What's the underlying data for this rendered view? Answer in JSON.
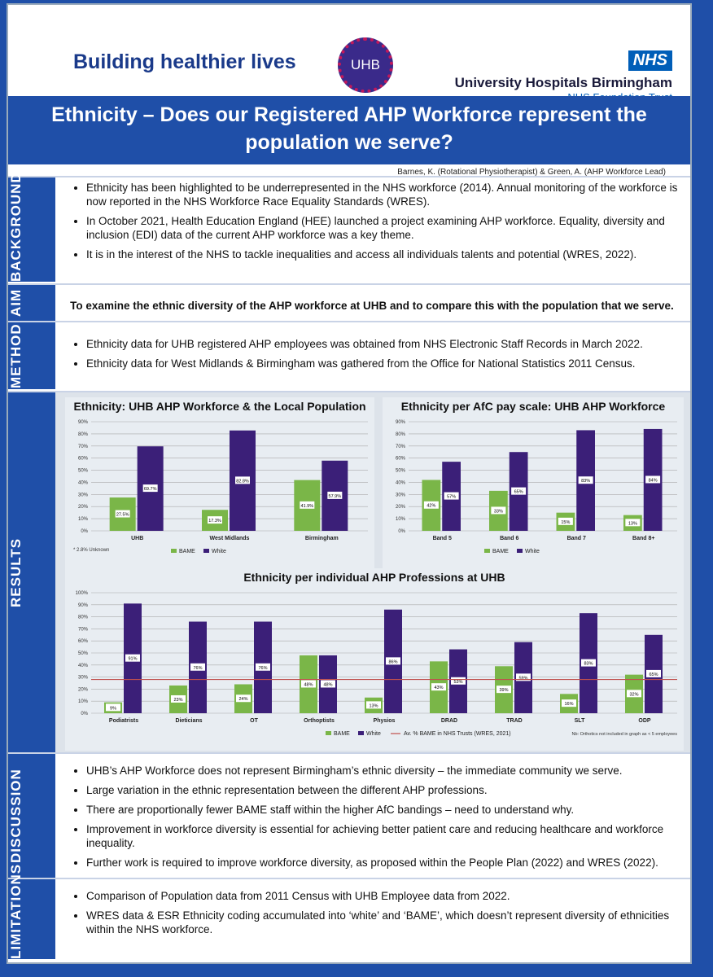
{
  "header": {
    "tagline": "Building healthier lives",
    "logo": "UHB",
    "nhs": "NHS",
    "org": "University Hospitals Birmingham",
    "trust": "NHS Foundation Trust"
  },
  "title": "Ethnicity – Does our Registered AHP Workforce represent the population we serve?",
  "authors": "Barnes, K. (Rotational Physiotherapist) & Green, A. (AHP Workforce Lead)",
  "sections": [
    {
      "label": "BACKGROUND",
      "items": [
        "Ethnicity has been highlighted to be underrepresented in the NHS workforce (2014). Annual monitoring of the workforce is now reported in the NHS Workforce Race Equality Standards (WRES).",
        "In October 2021, Health Education England (HEE) launched a project examining AHP workforce. Equality, diversity and inclusion (EDI) data of the current AHP workforce was a key theme.",
        "It is in the interest of the NHS to tackle inequalities and access all individuals talents and potential (WRES, 2022)."
      ]
    },
    {
      "label": "AIM",
      "items": [
        "To examine the ethnic diversity of the AHP workforce at UHB and to compare this with the population that we serve."
      ]
    },
    {
      "label": "METHOD",
      "items": [
        "Ethnicity data for UHB registered AHP employees was obtained from NHS Electronic Staff Records in March 2022.",
        "Ethnicity data for West Midlands & Birmingham was gathered from the Office for National Statistics 2011 Census."
      ]
    },
    {
      "label": "RESULTS",
      "items": []
    },
    {
      "label": "DISCUSSION",
      "items": [
        "UHB’s AHP Workforce does not represent Birmingham’s ethnic diversity – the immediate community we serve.",
        "Large variation in the ethnic representation between the different AHP professions.",
        "There are proportionally fewer BAME staff within the higher AfC bandings – need to understand why.",
        "Improvement in workforce diversity is essential for achieving better patient care and reducing healthcare and workforce inequality.",
        "Further work is required to improve workforce diversity, as proposed within the People Plan (2022) and WRES (2022)."
      ]
    },
    {
      "label": "LIMITATIONS",
      "items": [
        "Comparison of Population data from 2011 Census with UHB Employee data from 2022.",
        "WRES data & ESR Ethnicity coding accumulated into ‘white’ and ‘BAME’, which doesn’t represent diversity of ethnicities within the NHS workforce."
      ]
    }
  ],
  "chart_data": [
    {
      "type": "bar",
      "title": "Ethnicity: UHB AHP Workforce & the Local Population",
      "categories": [
        "UHB",
        "West Midlands",
        "Birmingham"
      ],
      "series": [
        {
          "name": "BAME",
          "color": "#7ab648",
          "values": [
            27.5,
            17.3,
            41.9
          ],
          "value_labels": [
            "27.5%",
            "17.3%",
            "41.9%"
          ]
        },
        {
          "name": "White",
          "color": "#3b1f78",
          "values": [
            69.7,
            82.8,
            57.9
          ],
          "value_labels": [
            "69.7%",
            "82.8%",
            "57.9%"
          ]
        }
      ],
      "ylim": [
        0,
        90
      ],
      "yticks": [
        {
          "value": 0,
          "label": "0%"
        },
        {
          "value": 10,
          "label": "10%"
        },
        {
          "value": 20,
          "label": "20%"
        },
        {
          "value": 30,
          "label": "30%"
        },
        {
          "value": 40,
          "label": "40%"
        },
        {
          "value": 50,
          "label": "50%"
        },
        {
          "value": 60,
          "label": "60%"
        },
        {
          "value": 70,
          "label": "70%"
        },
        {
          "value": 80,
          "label": "80%"
        },
        {
          "value": 90,
          "label": "90%"
        }
      ],
      "grid": true,
      "note": "* 2.8% Unknown"
    },
    {
      "type": "bar",
      "title": "Ethnicity per AfC pay scale: UHB AHP Workforce",
      "categories": [
        "Band 5",
        "Band 6",
        "Band 7",
        "Band 8+"
      ],
      "series": [
        {
          "name": "BAME",
          "color": "#7ab648",
          "values": [
            42,
            33,
            15,
            13
          ],
          "value_labels": [
            "42%",
            "33%",
            "15%",
            "13%"
          ]
        },
        {
          "name": "White",
          "color": "#3b1f78",
          "values": [
            57,
            65,
            83,
            84
          ],
          "value_labels": [
            "57%",
            "65%",
            "83%",
            "84%"
          ]
        }
      ],
      "ylim": [
        0,
        90
      ],
      "yticks": [
        {
          "value": 0,
          "label": "0%"
        },
        {
          "value": 10,
          "label": "10%"
        },
        {
          "value": 20,
          "label": "20%"
        },
        {
          "value": 30,
          "label": "30%"
        },
        {
          "value": 40,
          "label": "40%"
        },
        {
          "value": 50,
          "label": "50%"
        },
        {
          "value": 60,
          "label": "60%"
        },
        {
          "value": 70,
          "label": "70%"
        },
        {
          "value": 80,
          "label": "80%"
        },
        {
          "value": 90,
          "label": "90%"
        }
      ],
      "grid": true
    },
    {
      "type": "bar",
      "title": "Ethnicity per individual AHP Professions at UHB",
      "categories": [
        "Podiatrists",
        "Dieticians",
        "OT",
        "Orthoptists",
        "Physios",
        "DRAD",
        "TRAD",
        "SLT",
        "ODP"
      ],
      "series": [
        {
          "name": "BAME",
          "color": "#7ab648",
          "values": [
            9,
            23,
            24,
            48,
            13,
            43,
            39,
            16,
            32
          ],
          "value_labels": [
            "9%",
            "23%",
            "24%",
            "48%",
            "13%",
            "43%",
            "39%",
            "16%",
            "32%"
          ]
        },
        {
          "name": "White",
          "color": "#3b1f78",
          "values": [
            91,
            76,
            76,
            48,
            86,
            53,
            59,
            83,
            65
          ],
          "value_labels": [
            "91%",
            "76%",
            "76%",
            "48%",
            "86%",
            "53%",
            "59%",
            "83%",
            "65%"
          ]
        }
      ],
      "reference": {
        "label": "Av. % BAME in NHS Trusts (WRES, 2021)",
        "value": 28,
        "color": "#c0504d"
      },
      "ylim": [
        0,
        100
      ],
      "yticks": [
        {
          "value": 0,
          "label": "0%"
        },
        {
          "value": 10,
          "label": "10%"
        },
        {
          "value": 20,
          "label": "20%"
        },
        {
          "value": 30,
          "label": "30%"
        },
        {
          "value": 40,
          "label": "40%"
        },
        {
          "value": 50,
          "label": "50%"
        },
        {
          "value": 60,
          "label": "60%"
        },
        {
          "value": 70,
          "label": "70%"
        },
        {
          "value": 80,
          "label": "80%"
        },
        {
          "value": 90,
          "label": "90%"
        },
        {
          "value": 100,
          "label": "100%"
        }
      ],
      "grid": true,
      "note": "Nb: Orthotics not included in graph as < 5 employees"
    }
  ]
}
